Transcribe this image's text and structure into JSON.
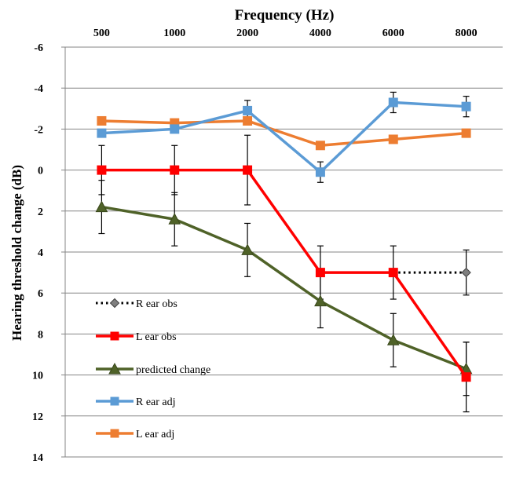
{
  "chart_data": {
    "type": "line",
    "title": "",
    "xlabel": "Frequency (Hz)",
    "ylabel": "Hearing threshold change (dB)",
    "x_axis_position": "top",
    "y_axis_inverted": true,
    "categories": [
      "500",
      "1000",
      "2000",
      "4000",
      "6000",
      "8000"
    ],
    "ylim": [
      -6,
      14
    ],
    "yticks": [
      "-6",
      "-4",
      "-2",
      "0",
      "2",
      "4",
      "6",
      "8",
      "10",
      "12",
      "14"
    ],
    "ytick_values": [
      -6,
      -4,
      -2,
      0,
      2,
      4,
      6,
      8,
      10,
      12,
      14
    ],
    "grid": "horizontal",
    "legend_position": "bottom-left inside",
    "series": [
      {
        "name": "R ear obs",
        "color": "#000000",
        "line_style": "dotted",
        "marker": "diamond",
        "values": [
          null,
          null,
          null,
          null,
          5,
          5
        ],
        "error": [
          null,
          null,
          null,
          null,
          null,
          1.1
        ]
      },
      {
        "name": "L ear obs",
        "color": "#ff0000",
        "line_style": "solid",
        "marker": "square",
        "values": [
          0,
          0,
          0,
          5,
          5,
          10.1
        ],
        "error": [
          1.2,
          1.2,
          1.7,
          1.3,
          1.3,
          1.7
        ]
      },
      {
        "name": "predicted change",
        "color": "#4f6228",
        "line_style": "solid",
        "marker": "triangle",
        "values": [
          1.8,
          2.4,
          3.9,
          6.4,
          8.3,
          9.7
        ],
        "error": [
          1.3,
          1.3,
          1.3,
          1.3,
          1.3,
          1.3
        ]
      },
      {
        "name": "R ear adj",
        "color": "#5b9bd5",
        "line_style": "solid",
        "marker": "square",
        "values": [
          -1.8,
          -2.0,
          -2.9,
          0.1,
          -3.3,
          -3.1
        ],
        "error": [
          null,
          null,
          0.5,
          0.5,
          0.5,
          0.5
        ]
      },
      {
        "name": "L ear adj",
        "color": "#ed7d31",
        "line_style": "solid",
        "marker": "square",
        "values": [
          -2.4,
          -2.3,
          -2.4,
          -1.2,
          -1.5,
          -1.8
        ],
        "error": [
          null,
          null,
          null,
          null,
          null,
          null
        ]
      }
    ]
  }
}
